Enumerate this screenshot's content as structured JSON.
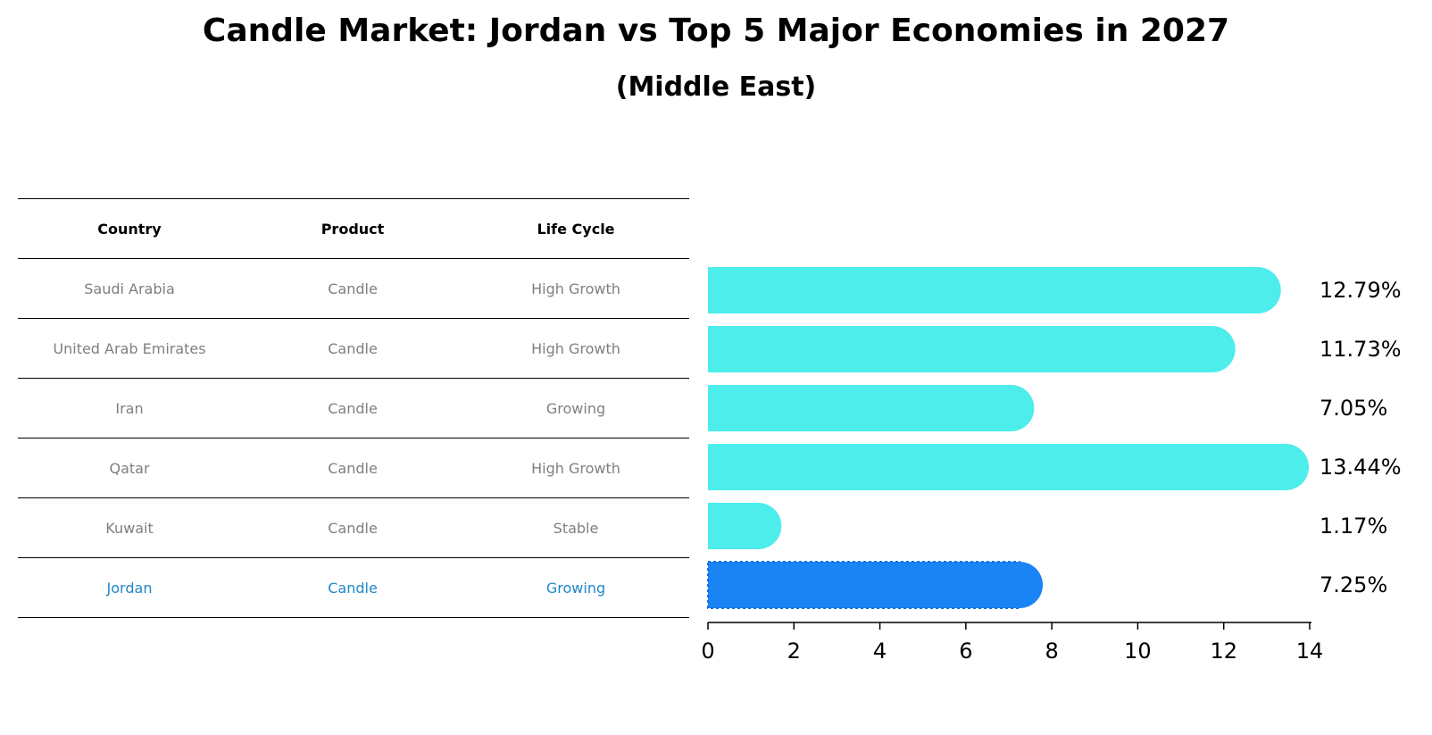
{
  "chart_data": {
    "type": "bar",
    "orientation": "horizontal",
    "title": "Candle Market: Jordan vs Top 5 Major Economies in 2027",
    "subtitle": "(Middle East)",
    "table": {
      "headers": [
        "Country",
        "Product",
        "Life Cycle"
      ],
      "rows": [
        [
          "Saudi Arabia",
          "Candle",
          "High Growth"
        ],
        [
          "United Arab Emirates",
          "Candle",
          "High Growth"
        ],
        [
          "Iran",
          "Candle",
          "Growing"
        ],
        [
          "Qatar",
          "Candle",
          "High Growth"
        ],
        [
          "Kuwait",
          "Candle",
          "Stable"
        ],
        [
          "Jordan",
          "Candle",
          "Growing"
        ]
      ],
      "highlight_row": 5
    },
    "categories": [
      "Saudi Arabia",
      "United Arab Emirates",
      "Iran",
      "Qatar",
      "Kuwait",
      "Jordan"
    ],
    "values": [
      12.79,
      11.73,
      7.05,
      13.44,
      1.17,
      7.25
    ],
    "value_labels": [
      "12.79%",
      "11.73%",
      "7.05%",
      "13.44%",
      "1.17%",
      "7.25%"
    ],
    "xlim": [
      0,
      14
    ],
    "xticks": [
      0,
      2,
      4,
      6,
      8,
      10,
      12,
      14
    ],
    "colors": {
      "bar": "#4dedec",
      "highlight": "#1a84f5",
      "axis": "#000000",
      "muted_text": "#7f7f7f",
      "highlight_text": "#1f87c8"
    }
  }
}
